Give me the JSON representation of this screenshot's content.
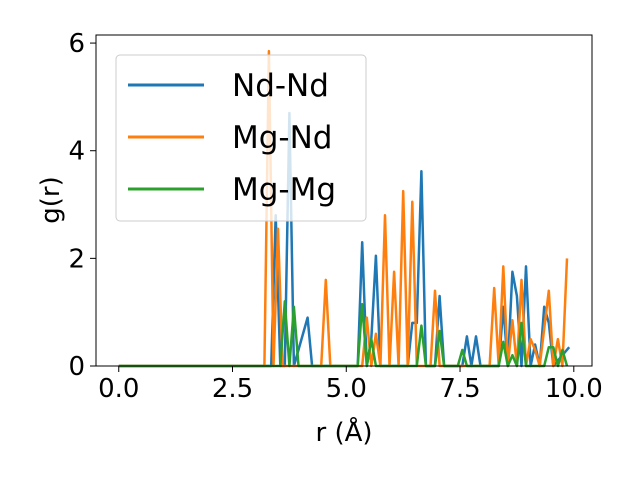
{
  "chart_data": {
    "type": "line",
    "title": "",
    "xlabel": "r (Å)",
    "ylabel": "g(r)",
    "xlim": [
      -0.5,
      10.4
    ],
    "ylim": [
      0,
      6.15
    ],
    "xticks": [
      0.0,
      2.5,
      5.0,
      7.5,
      10.0
    ],
    "xtick_labels": [
      "0.0",
      "2.5",
      "5.0",
      "7.5",
      "10.0"
    ],
    "yticks": [
      0,
      2,
      4,
      6
    ],
    "ytick_labels": [
      "0",
      "2",
      "4",
      "6"
    ],
    "grid": false,
    "legend_position": "top-left",
    "series": [
      {
        "name": "Nd-Nd",
        "color": "#1f77b4",
        "points": [
          [
            0,
            0
          ],
          [
            3.35,
            0
          ],
          [
            3.45,
            2.8
          ],
          [
            3.55,
            0
          ],
          [
            3.65,
            0
          ],
          [
            3.75,
            4.7
          ],
          [
            3.85,
            0
          ],
          [
            4.15,
            0.9
          ],
          [
            4.25,
            0
          ],
          [
            5.25,
            0
          ],
          [
            5.35,
            2.3
          ],
          [
            5.45,
            0
          ],
          [
            5.55,
            0.5
          ],
          [
            5.65,
            2.05
          ],
          [
            5.75,
            0
          ],
          [
            6.35,
            0
          ],
          [
            6.45,
            0.8
          ],
          [
            6.55,
            0.8
          ],
          [
            6.65,
            3.62
          ],
          [
            6.75,
            0
          ],
          [
            6.95,
            0
          ],
          [
            7.05,
            1.3
          ],
          [
            7.15,
            0
          ],
          [
            7.55,
            0
          ],
          [
            7.65,
            0.55
          ],
          [
            7.75,
            0
          ],
          [
            7.85,
            0.55
          ],
          [
            7.95,
            0
          ],
          [
            8.35,
            0
          ],
          [
            8.45,
            1.1
          ],
          [
            8.55,
            0
          ],
          [
            8.65,
            1.75
          ],
          [
            8.75,
            1.3
          ],
          [
            8.85,
            0
          ],
          [
            8.95,
            1.85
          ],
          [
            9.05,
            0
          ],
          [
            9.15,
            0.4
          ],
          [
            9.25,
            0
          ],
          [
            9.35,
            1.1
          ],
          [
            9.45,
            0.8
          ],
          [
            9.55,
            0
          ],
          [
            9.75,
            0.2
          ],
          [
            9.9,
            0.35
          ]
        ]
      },
      {
        "name": "Mg-Nd",
        "color": "#ff7f0e",
        "points": [
          [
            0,
            0
          ],
          [
            3.2,
            0
          ],
          [
            3.3,
            5.85
          ],
          [
            3.4,
            0
          ],
          [
            3.5,
            2.55
          ],
          [
            3.6,
            0
          ],
          [
            4.45,
            0
          ],
          [
            4.55,
            1.6
          ],
          [
            4.65,
            0
          ],
          [
            5.35,
            0
          ],
          [
            5.45,
            0.9
          ],
          [
            5.55,
            0
          ],
          [
            5.65,
            0.6
          ],
          [
            5.75,
            0
          ],
          [
            5.85,
            2.8
          ],
          [
            5.95,
            0
          ],
          [
            6.05,
            1.75
          ],
          [
            6.15,
            0
          ],
          [
            6.25,
            3.25
          ],
          [
            6.35,
            0
          ],
          [
            6.45,
            3.05
          ],
          [
            6.55,
            0
          ],
          [
            6.85,
            0
          ],
          [
            6.95,
            1.4
          ],
          [
            7.05,
            0
          ],
          [
            8.15,
            0
          ],
          [
            8.25,
            1.45
          ],
          [
            8.35,
            0
          ],
          [
            8.45,
            1.85
          ],
          [
            8.55,
            0
          ],
          [
            8.65,
            0.85
          ],
          [
            8.75,
            0
          ],
          [
            8.85,
            1.6
          ],
          [
            8.95,
            0
          ],
          [
            9.05,
            0.5
          ],
          [
            9.15,
            0.3
          ],
          [
            9.25,
            0
          ],
          [
            9.45,
            1.4
          ],
          [
            9.55,
            0
          ],
          [
            9.65,
            0.5
          ],
          [
            9.75,
            0
          ],
          [
            9.85,
            2.0
          ]
        ]
      },
      {
        "name": "Mg-Mg",
        "color": "#2ca02c",
        "points": [
          [
            0,
            0
          ],
          [
            3.55,
            0
          ],
          [
            3.65,
            1.2
          ],
          [
            3.75,
            0
          ],
          [
            3.85,
            1.1
          ],
          [
            3.95,
            0
          ],
          [
            5.25,
            0
          ],
          [
            5.35,
            1.15
          ],
          [
            5.45,
            0
          ],
          [
            5.55,
            0.5
          ],
          [
            5.65,
            0
          ],
          [
            6.55,
            0
          ],
          [
            6.65,
            0.75
          ],
          [
            6.75,
            0
          ],
          [
            6.95,
            0
          ],
          [
            7.05,
            0.65
          ],
          [
            7.15,
            0
          ],
          [
            7.45,
            0
          ],
          [
            7.55,
            0.3
          ],
          [
            7.65,
            0
          ],
          [
            8.35,
            0
          ],
          [
            8.45,
            0.45
          ],
          [
            8.55,
            0
          ],
          [
            8.65,
            0.2
          ],
          [
            8.75,
            0
          ],
          [
            8.85,
            0.8
          ],
          [
            8.95,
            0
          ],
          [
            9.35,
            0
          ],
          [
            9.45,
            0.35
          ],
          [
            9.55,
            0.35
          ],
          [
            9.65,
            0
          ],
          [
            9.75,
            0.3
          ],
          [
            9.85,
            0
          ]
        ]
      }
    ]
  }
}
